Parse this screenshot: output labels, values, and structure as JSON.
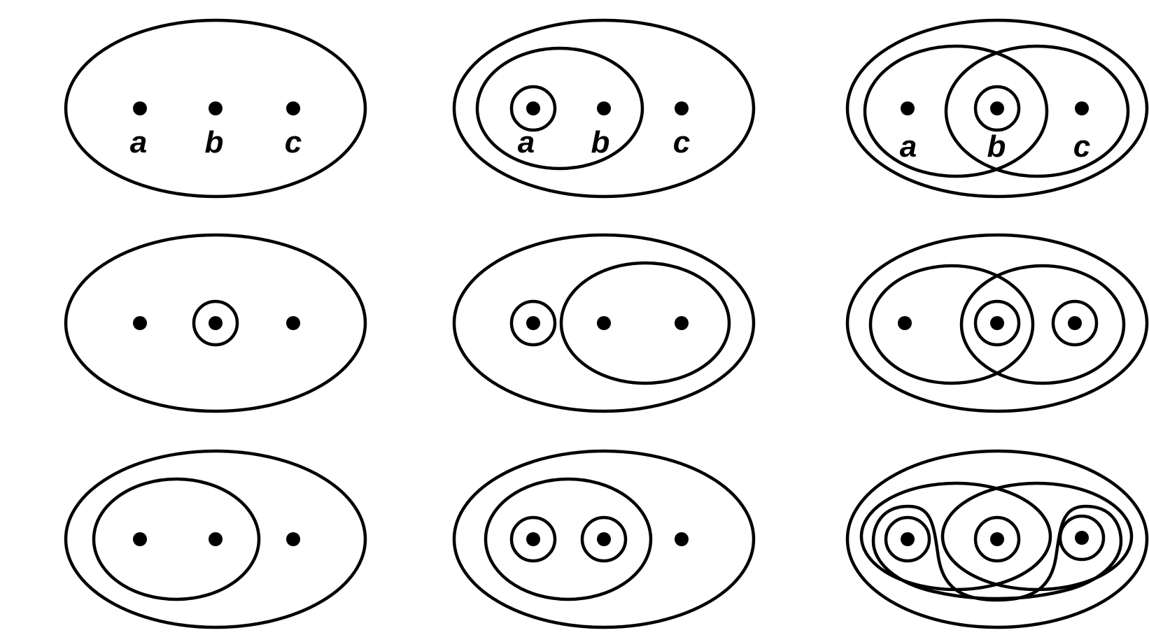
{
  "diagram": {
    "point_labels": [
      "a",
      "b",
      "c"
    ],
    "colors": {
      "stroke": "#000000",
      "background": "#ffffff"
    },
    "panels": [
      {
        "row": 1,
        "col": 1,
        "labeled": true
      },
      {
        "row": 1,
        "col": 2,
        "labeled": true
      },
      {
        "row": 1,
        "col": 3,
        "labeled": true
      },
      {
        "row": 2,
        "col": 1,
        "labeled": false
      },
      {
        "row": 2,
        "col": 2,
        "labeled": false
      },
      {
        "row": 2,
        "col": 3,
        "labeled": false
      },
      {
        "row": 3,
        "col": 1,
        "labeled": false
      },
      {
        "row": 3,
        "col": 2,
        "labeled": false
      },
      {
        "row": 3,
        "col": 3,
        "labeled": false
      }
    ]
  }
}
